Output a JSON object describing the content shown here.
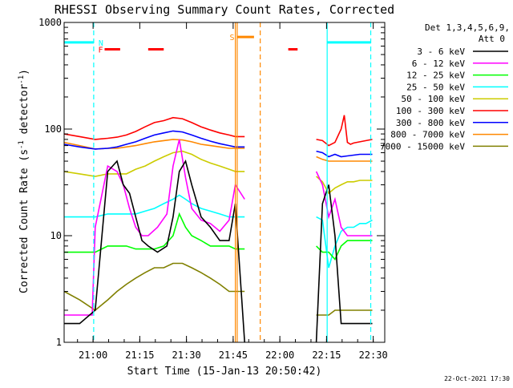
{
  "chart_data": {
    "type": "line",
    "title": "RHESSI Observing Summary Count Rates, Corrected",
    "xlabel": "Start Time (15-Jan-13 20:50:42)",
    "ylabel_main": "Corrected Count Rate (s",
    "ylabel_sup1": "-1",
    "ylabel_mid": " detector",
    "ylabel_sup2": "-1",
    "ylabel_end": ")",
    "x_ticks": [
      "21:00",
      "21:15",
      "21:30",
      "21:45",
      "22:00",
      "22:15",
      "22:30"
    ],
    "x_tick_minutes": [
      9.3,
      24.3,
      39.3,
      54.3,
      69.3,
      84.3,
      99.3
    ],
    "xlim_minutes": [
      0,
      103
    ],
    "y_scale": "log",
    "ylim": [
      1,
      1000
    ],
    "y_ticks": [
      "1",
      "10",
      "100",
      "1000"
    ],
    "y_tick_values": [
      1,
      10,
      100,
      1000
    ],
    "legend_header": [
      "Det 1,3,4,5,6,9,",
      "Att 0"
    ],
    "legend_placement": "right",
    "series": [
      {
        "name": "3 - 6 keV",
        "color": "#000000",
        "x": [
          0,
          5,
          10,
          14,
          17,
          19,
          21,
          23,
          25,
          27,
          30,
          33,
          35,
          37,
          39,
          41,
          44,
          47,
          50,
          53,
          55,
          58,
          81,
          83,
          85,
          87,
          89,
          91,
          93,
          95,
          97,
          99
        ],
        "y": [
          1.5,
          1.5,
          2,
          40,
          50,
          30,
          25,
          15,
          9,
          8,
          7,
          8,
          15,
          40,
          50,
          30,
          15,
          12,
          9,
          9,
          20,
          1,
          1,
          20,
          30,
          10,
          1.5,
          1.5,
          1.5,
          1.5,
          1.5,
          1.5
        ]
      },
      {
        "name": "6 - 12 keV",
        "color": "#ff00ff",
        "x": [
          0,
          5,
          9,
          10,
          14,
          17,
          19,
          21,
          23,
          25,
          27,
          30,
          33,
          35,
          37,
          39,
          41,
          44,
          47,
          50,
          53,
          55,
          58,
          81,
          83,
          85,
          87,
          89,
          91,
          93,
          95,
          97,
          99
        ],
        "y": [
          1.8,
          1.8,
          1.8,
          12,
          45,
          40,
          30,
          18,
          12,
          10,
          10,
          12,
          16,
          45,
          80,
          35,
          18,
          14,
          13,
          11,
          14,
          30,
          22,
          40,
          30,
          15,
          22,
          12,
          10,
          10,
          10,
          10,
          10
        ]
      },
      {
        "name": "12 - 25 keV",
        "color": "#00ff00",
        "x": [
          0,
          10,
          14,
          17,
          20,
          23,
          26,
          29,
          32,
          35,
          37,
          39,
          41,
          44,
          47,
          50,
          53,
          55,
          58,
          81,
          83,
          85,
          87,
          89,
          91,
          93,
          95,
          97,
          99
        ],
        "y": [
          7,
          7,
          8,
          8,
          8,
          7.5,
          7.5,
          7.5,
          8,
          10,
          16,
          12,
          10,
          9,
          8,
          8,
          8,
          7.5,
          7.5,
          8,
          7,
          7,
          6,
          8,
          9,
          9,
          9,
          9,
          9
        ]
      },
      {
        "name": "25 - 50 keV",
        "color": "#00ffff",
        "x": [
          0,
          10,
          14,
          17,
          20,
          23,
          26,
          29,
          32,
          35,
          37,
          39,
          41,
          44,
          47,
          50,
          53,
          55,
          58,
          81,
          83,
          85,
          87,
          89,
          91,
          93,
          95,
          97,
          99
        ],
        "y": [
          15,
          15,
          16,
          16,
          16,
          16,
          17,
          18,
          20,
          22,
          24,
          22,
          20,
          18,
          17,
          16,
          15,
          15,
          15,
          15,
          14,
          5,
          8,
          11,
          12,
          12,
          13,
          13,
          14
        ]
      },
      {
        "name": "50 - 100 keV",
        "color": "#cccc00",
        "x": [
          0,
          5,
          10,
          14,
          17,
          20,
          23,
          26,
          29,
          32,
          35,
          38,
          41,
          44,
          47,
          50,
          53,
          55,
          58,
          81,
          83,
          85,
          87,
          89,
          91,
          93,
          95,
          97,
          99
        ],
        "y": [
          40,
          38,
          36,
          38,
          38,
          38,
          42,
          45,
          50,
          55,
          60,
          62,
          58,
          52,
          48,
          45,
          42,
          40,
          40,
          36,
          32,
          25,
          28,
          30,
          32,
          32,
          33,
          33,
          33
        ]
      },
      {
        "name": "100 - 300 keV",
        "color": "#ff0000",
        "x": [
          0,
          5,
          10,
          14,
          17,
          20,
          23,
          26,
          29,
          32,
          35,
          38,
          41,
          44,
          47,
          50,
          53,
          55,
          58,
          81,
          83,
          85,
          87,
          89,
          90,
          91,
          92,
          93,
          95,
          97,
          99
        ],
        "y": [
          90,
          85,
          80,
          82,
          84,
          88,
          95,
          105,
          115,
          120,
          128,
          125,
          115,
          105,
          98,
          92,
          88,
          85,
          85,
          80,
          78,
          70,
          75,
          100,
          135,
          75,
          72,
          74,
          76,
          78,
          80
        ]
      },
      {
        "name": "300 - 800 keV",
        "color": "#0000ff",
        "x": [
          0,
          5,
          10,
          14,
          17,
          20,
          23,
          26,
          29,
          32,
          35,
          38,
          41,
          44,
          47,
          50,
          53,
          55,
          58,
          81,
          83,
          85,
          87,
          89,
          91,
          93,
          95,
          97,
          99
        ],
        "y": [
          72,
          68,
          65,
          66,
          68,
          72,
          76,
          82,
          88,
          92,
          96,
          94,
          88,
          82,
          77,
          73,
          70,
          68,
          68,
          62,
          60,
          55,
          58,
          55,
          56,
          57,
          58,
          58,
          58
        ]
      },
      {
        "name": "800 - 7000 keV",
        "color": "#ff8800",
        "x": [
          0,
          5,
          10,
          14,
          17,
          20,
          23,
          26,
          29,
          32,
          35,
          38,
          41,
          44,
          47,
          50,
          53,
          55,
          58,
          81,
          83,
          85,
          87,
          89,
          91,
          93,
          95,
          97,
          99
        ],
        "y": [
          75,
          70,
          65,
          66,
          66,
          68,
          70,
          73,
          76,
          78,
          80,
          79,
          76,
          72,
          70,
          68,
          66,
          66,
          66,
          55,
          52,
          50,
          50,
          50,
          50,
          50,
          50,
          50,
          50
        ]
      },
      {
        "name": "7000 - 15000 keV",
        "color": "#808000",
        "x": [
          0,
          5,
          10,
          14,
          17,
          20,
          23,
          26,
          29,
          32,
          35,
          38,
          41,
          44,
          47,
          50,
          53,
          55,
          58,
          81,
          83,
          85,
          87,
          89,
          91,
          93,
          95,
          97,
          99
        ],
        "y": [
          3,
          2.5,
          2,
          2.5,
          3,
          3.5,
          4,
          4.5,
          5,
          5,
          5.5,
          5.5,
          5,
          4.5,
          4,
          3.5,
          3,
          3,
          3,
          1.8,
          1.8,
          1.8,
          2,
          2,
          2,
          2,
          2,
          2,
          2
        ]
      }
    ],
    "annotations": {
      "night_label": "N",
      "flare_label": "F",
      "saa_label": "S",
      "night_color": "#00ffff",
      "flare_color": "#ff0000",
      "saa_color": "#ff8800",
      "night_segments": [
        [
          0,
          9.5
        ],
        [
          84.5,
          98.5
        ]
      ],
      "flare_segments": [
        [
          13,
          18
        ],
        [
          27,
          32
        ],
        [
          72,
          75
        ]
      ],
      "saa_segments": [
        [
          55.5,
          61
        ]
      ],
      "saa_lines": [
        55,
        55.6,
        63
      ],
      "night_lines_solid": [
        84.5
      ],
      "night_lines_dashed": [
        9.5,
        98.5
      ]
    },
    "grid": false
  },
  "footer": {
    "date_stamp": "22-Oct-2021 17:30"
  }
}
